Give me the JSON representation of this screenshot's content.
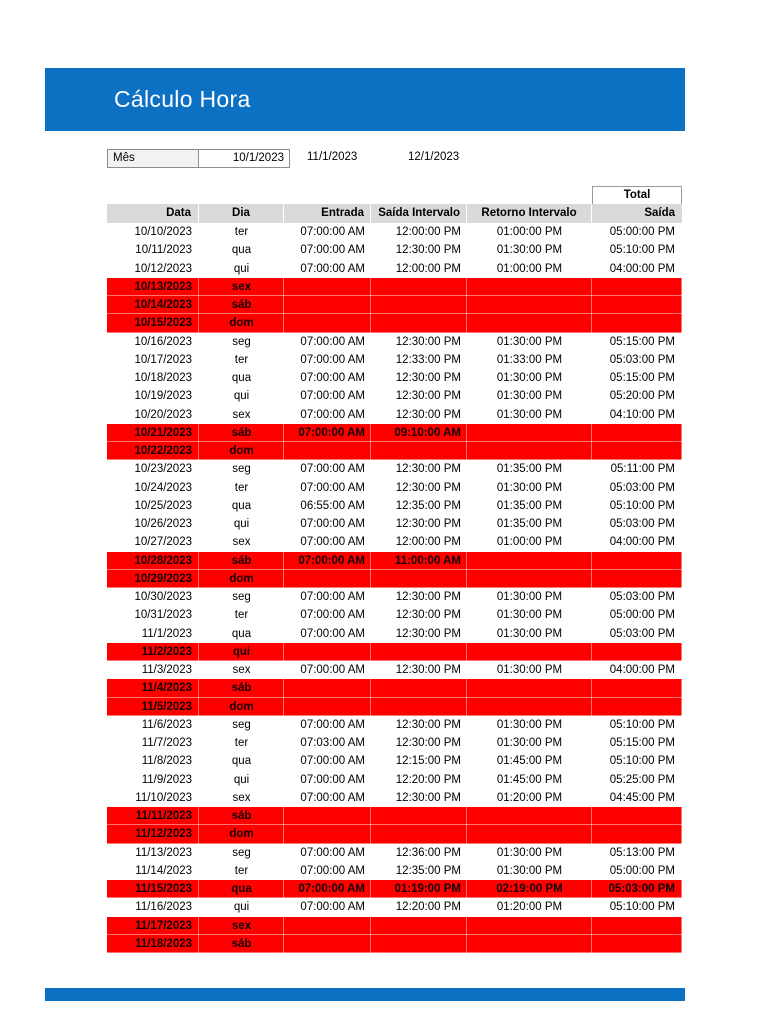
{
  "title": "Cálculo Hora",
  "colors": {
    "banner_blue": "#0c70c3",
    "header_fill": "#d9d9d9",
    "weekend_fill": "#ff0000",
    "month_label_fill": "#f2f2f2"
  },
  "month": {
    "label": "Mês",
    "values": [
      "10/1/2023",
      "11/1/2023",
      "12/1/2023"
    ]
  },
  "table": {
    "total_label": "Total",
    "columns": [
      "Data",
      "Dia",
      "Entrada",
      "Saída Intervalo",
      "Retorno Intervalo",
      "Saída"
    ],
    "rows": [
      {
        "red": false,
        "cells": [
          "10/10/2023",
          "ter",
          "07:00:00 AM",
          "12:00:00 PM",
          "01:00:00 PM",
          "05:00:00 PM"
        ]
      },
      {
        "red": false,
        "cells": [
          "10/11/2023",
          "qua",
          "07:00:00 AM",
          "12:30:00 PM",
          "01:30:00 PM",
          "05:10:00 PM"
        ]
      },
      {
        "red": false,
        "cells": [
          "10/12/2023",
          "qui",
          "07:00:00 AM",
          "12:00:00 PM",
          "01:00:00 PM",
          "04:00:00 PM"
        ]
      },
      {
        "red": true,
        "cells": [
          "10/13/2023",
          "sex",
          "",
          "",
          "",
          ""
        ]
      },
      {
        "red": true,
        "cells": [
          "10/14/2023",
          "sáb",
          "",
          "",
          "",
          ""
        ]
      },
      {
        "red": true,
        "cells": [
          "10/15/2023",
          "dom",
          "",
          "",
          "",
          ""
        ]
      },
      {
        "red": false,
        "cells": [
          "10/16/2023",
          "seg",
          "07:00:00 AM",
          "12:30:00 PM",
          "01:30:00 PM",
          "05:15:00 PM"
        ]
      },
      {
        "red": false,
        "cells": [
          "10/17/2023",
          "ter",
          "07:00:00 AM",
          "12:33:00 PM",
          "01:33:00 PM",
          "05:03:00 PM"
        ]
      },
      {
        "red": false,
        "cells": [
          "10/18/2023",
          "qua",
          "07:00:00 AM",
          "12:30:00 PM",
          "01:30:00 PM",
          "05:15:00 PM"
        ]
      },
      {
        "red": false,
        "cells": [
          "10/19/2023",
          "qui",
          "07:00:00 AM",
          "12:30:00 PM",
          "01:30:00 PM",
          "05:20:00 PM"
        ]
      },
      {
        "red": false,
        "cells": [
          "10/20/2023",
          "sex",
          "07:00:00 AM",
          "12:30:00 PM",
          "01:30:00 PM",
          "04:10:00 PM"
        ]
      },
      {
        "red": true,
        "cells": [
          "10/21/2023",
          "sáb",
          "07:00:00 AM",
          "09:10:00 AM",
          "",
          ""
        ]
      },
      {
        "red": true,
        "cells": [
          "10/22/2023",
          "dom",
          "",
          "",
          "",
          ""
        ]
      },
      {
        "red": false,
        "cells": [
          "10/23/2023",
          "seg",
          "07:00:00 AM",
          "12:30:00 PM",
          "01:35:00 PM",
          "05:11:00 PM"
        ]
      },
      {
        "red": false,
        "cells": [
          "10/24/2023",
          "ter",
          "07:00:00 AM",
          "12:30:00 PM",
          "01:30:00 PM",
          "05:03:00 PM"
        ]
      },
      {
        "red": false,
        "cells": [
          "10/25/2023",
          "qua",
          "06:55:00 AM",
          "12:35:00 PM",
          "01:35:00 PM",
          "05:10:00 PM"
        ]
      },
      {
        "red": false,
        "cells": [
          "10/26/2023",
          "qui",
          "07:00:00 AM",
          "12:30:00 PM",
          "01:35:00 PM",
          "05:03:00 PM"
        ]
      },
      {
        "red": false,
        "cells": [
          "10/27/2023",
          "sex",
          "07:00:00 AM",
          "12:00:00 PM",
          "01:00:00 PM",
          "04:00:00 PM"
        ]
      },
      {
        "red": true,
        "cells": [
          "10/28/2023",
          "sáb",
          "07:00:00 AM",
          "11:00:00 AM",
          "",
          ""
        ]
      },
      {
        "red": true,
        "cells": [
          "10/29/2023",
          "dom",
          "",
          "",
          "",
          ""
        ]
      },
      {
        "red": false,
        "cells": [
          "10/30/2023",
          "seg",
          "07:00:00 AM",
          "12:30:00 PM",
          "01:30:00 PM",
          "05:03:00 PM"
        ]
      },
      {
        "red": false,
        "cells": [
          "10/31/2023",
          "ter",
          "07:00:00 AM",
          "12:30:00 PM",
          "01:30:00 PM",
          "05:00:00 PM"
        ]
      },
      {
        "red": false,
        "cells": [
          "11/1/2023",
          "qua",
          "07:00:00 AM",
          "12:30:00 PM",
          "01:30:00 PM",
          "05:03:00 PM"
        ]
      },
      {
        "red": true,
        "cells": [
          "11/2/2023",
          "qui",
          "",
          "",
          "",
          ""
        ]
      },
      {
        "red": false,
        "cells": [
          "11/3/2023",
          "sex",
          "07:00:00 AM",
          "12:30:00 PM",
          "01:30:00 PM",
          "04:00:00 PM"
        ]
      },
      {
        "red": true,
        "cells": [
          "11/4/2023",
          "sáb",
          "",
          "",
          "",
          ""
        ]
      },
      {
        "red": true,
        "cells": [
          "11/5/2023",
          "dom",
          "",
          "",
          "",
          ""
        ]
      },
      {
        "red": false,
        "cells": [
          "11/6/2023",
          "seg",
          "07:00:00 AM",
          "12:30:00 PM",
          "01:30:00 PM",
          "05:10:00 PM"
        ]
      },
      {
        "red": false,
        "cells": [
          "11/7/2023",
          "ter",
          "07:03:00 AM",
          "12:30:00 PM",
          "01:30:00 PM",
          "05:15:00 PM"
        ]
      },
      {
        "red": false,
        "cells": [
          "11/8/2023",
          "qua",
          "07:00:00 AM",
          "12:15:00 PM",
          "01:45:00 PM",
          "05:10:00 PM"
        ]
      },
      {
        "red": false,
        "cells": [
          "11/9/2023",
          "qui",
          "07:00:00 AM",
          "12:20:00 PM",
          "01:45:00 PM",
          "05:25:00 PM"
        ]
      },
      {
        "red": false,
        "cells": [
          "11/10/2023",
          "sex",
          "07:00:00 AM",
          "12:30:00 PM",
          "01:20:00 PM",
          "04:45:00 PM"
        ]
      },
      {
        "red": true,
        "cells": [
          "11/11/2023",
          "sáb",
          "",
          "",
          "",
          ""
        ]
      },
      {
        "red": true,
        "cells": [
          "11/12/2023",
          "dom",
          "",
          "",
          "",
          ""
        ]
      },
      {
        "red": false,
        "cells": [
          "11/13/2023",
          "seg",
          "07:00:00 AM",
          "12:36:00 PM",
          "01:30:00 PM",
          "05:13:00 PM"
        ]
      },
      {
        "red": false,
        "cells": [
          "11/14/2023",
          "ter",
          "07:00:00 AM",
          "12:35:00 PM",
          "01:30:00 PM",
          "05:00:00 PM"
        ]
      },
      {
        "red": true,
        "cells": [
          "11/15/2023",
          "qua",
          "07:00:00 AM",
          "01:19:00 PM",
          "02:19:00 PM",
          "05:03:00 PM"
        ]
      },
      {
        "red": false,
        "cells": [
          "11/16/2023",
          "qui",
          "07:00:00 AM",
          "12:20:00 PM",
          "01:20:00 PM",
          "05:10:00 PM"
        ]
      },
      {
        "red": true,
        "cells": [
          "11/17/2023",
          "sex",
          "",
          "",
          "",
          ""
        ]
      },
      {
        "red": true,
        "cells": [
          "11/18/2023",
          "sáb",
          "",
          "",
          "",
          ""
        ]
      }
    ]
  }
}
